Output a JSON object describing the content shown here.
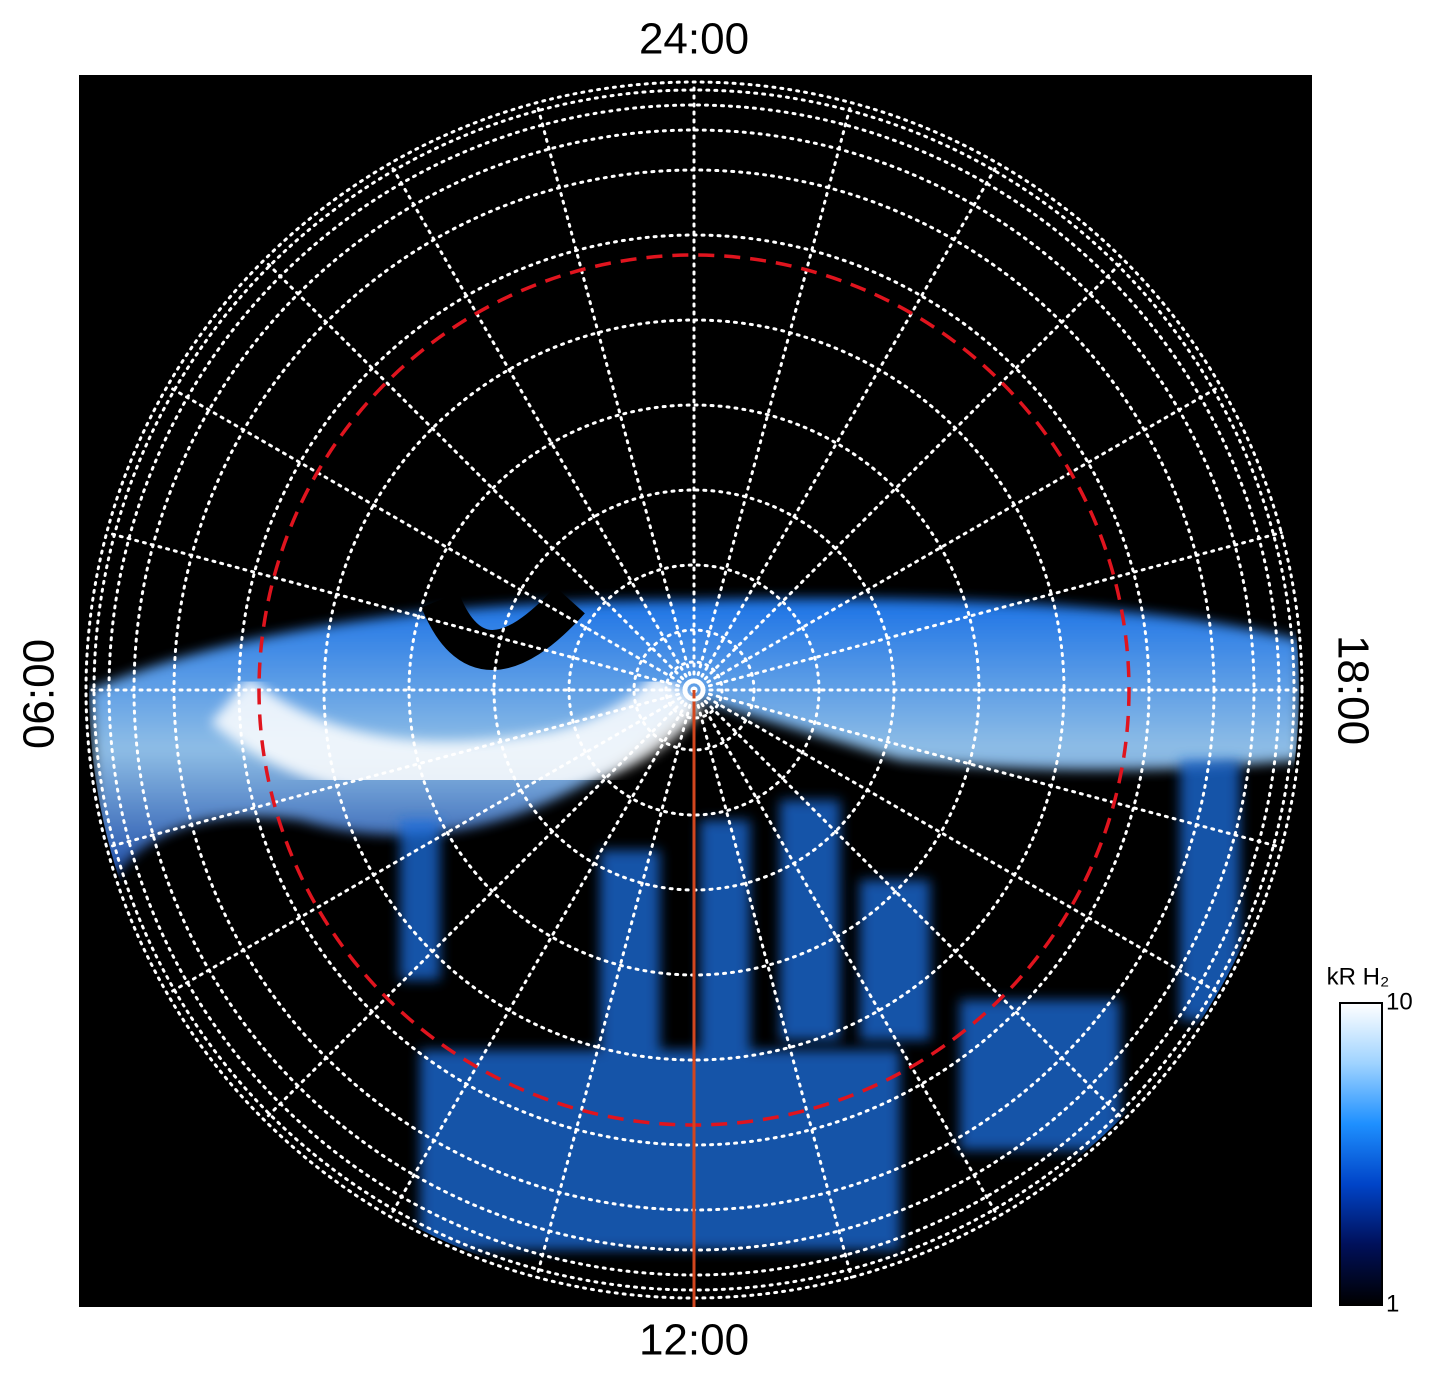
{
  "chart_data": {
    "type": "polar-image",
    "local_time_labels": {
      "top": "24:00",
      "left": "06:00",
      "right": "18:00",
      "bottom": "12:00"
    },
    "colorbar": {
      "label": "kR H₂",
      "lim": [
        1,
        10
      ],
      "ticks": [
        1,
        10
      ],
      "log": true,
      "colors": [
        "#000000",
        "#00105a",
        "#0044c8",
        "#1e90ff",
        "#9fd3ff",
        "#ffffff"
      ]
    },
    "grid": true
  }
}
